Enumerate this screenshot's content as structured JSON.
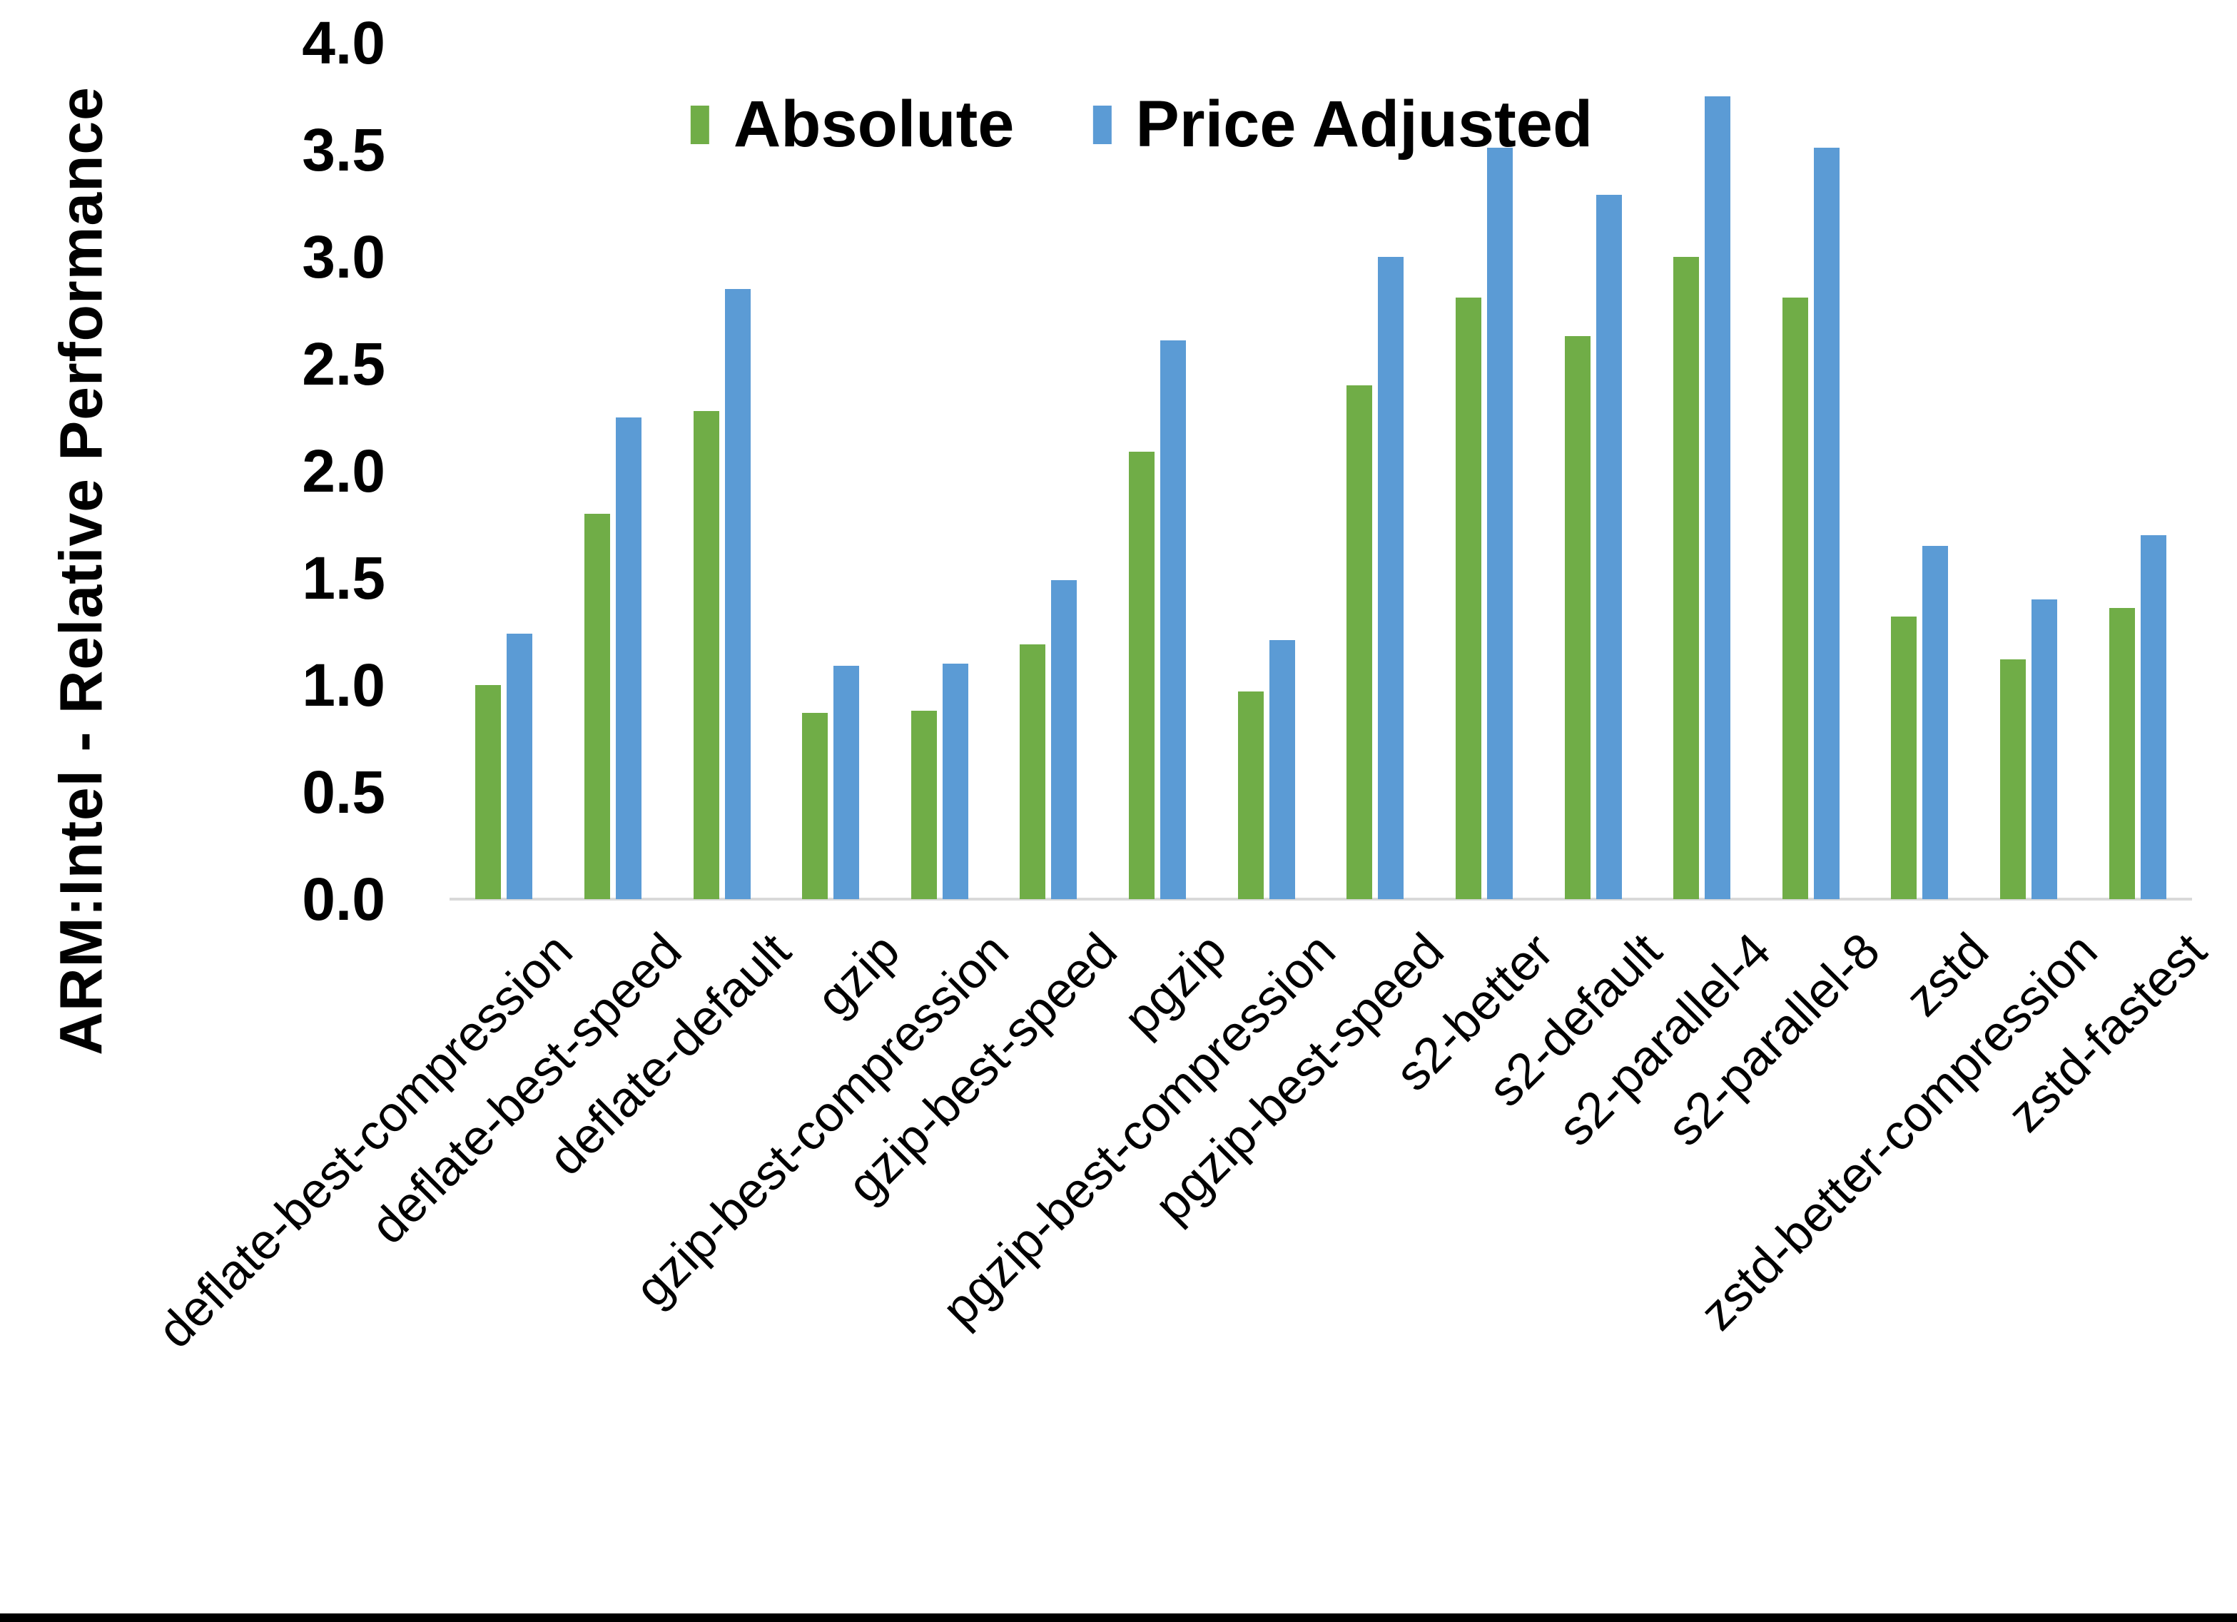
{
  "page": {
    "background": "#ffffff",
    "bottom_border_color": "#000000"
  },
  "chart_data": {
    "type": "bar",
    "title": "",
    "xlabel": "",
    "ylabel": "ARM:Intel - Relative Performance",
    "ylim": [
      0.0,
      4.0
    ],
    "ytick_labels": [
      "0.0",
      "0.5",
      "1.0",
      "1.5",
      "2.0",
      "2.5",
      "3.0",
      "3.5",
      "4.0"
    ],
    "grid": false,
    "legend_position": "top-center",
    "axis_line_color": "#d9d9d9",
    "categories": [
      "deflate-best-compression",
      "deflate-best-speed",
      "deflate-default",
      "gzip",
      "gzip-best-compression",
      "gzip-best-speed",
      "pgzip",
      "pgzip-best-compression",
      "pgzip-best-speed",
      "s2-better",
      "s2-default",
      "s2-parallel-4",
      "s2-parallel-8",
      "zstd",
      "zstd-better-compression",
      "zstd-fastest"
    ],
    "series": [
      {
        "name": "Absolute",
        "color": "#70AD47",
        "values": [
          1.0,
          1.8,
          2.28,
          0.87,
          0.88,
          1.19,
          2.09,
          0.97,
          2.4,
          2.81,
          2.63,
          3.0,
          2.81,
          1.32,
          1.12,
          1.36
        ]
      },
      {
        "name": "Price Adjusted",
        "color": "#5B9BD5",
        "values": [
          1.24,
          2.25,
          2.85,
          1.09,
          1.1,
          1.49,
          2.61,
          1.21,
          3.0,
          3.51,
          3.29,
          3.75,
          3.51,
          1.65,
          1.4,
          1.7
        ]
      }
    ]
  }
}
